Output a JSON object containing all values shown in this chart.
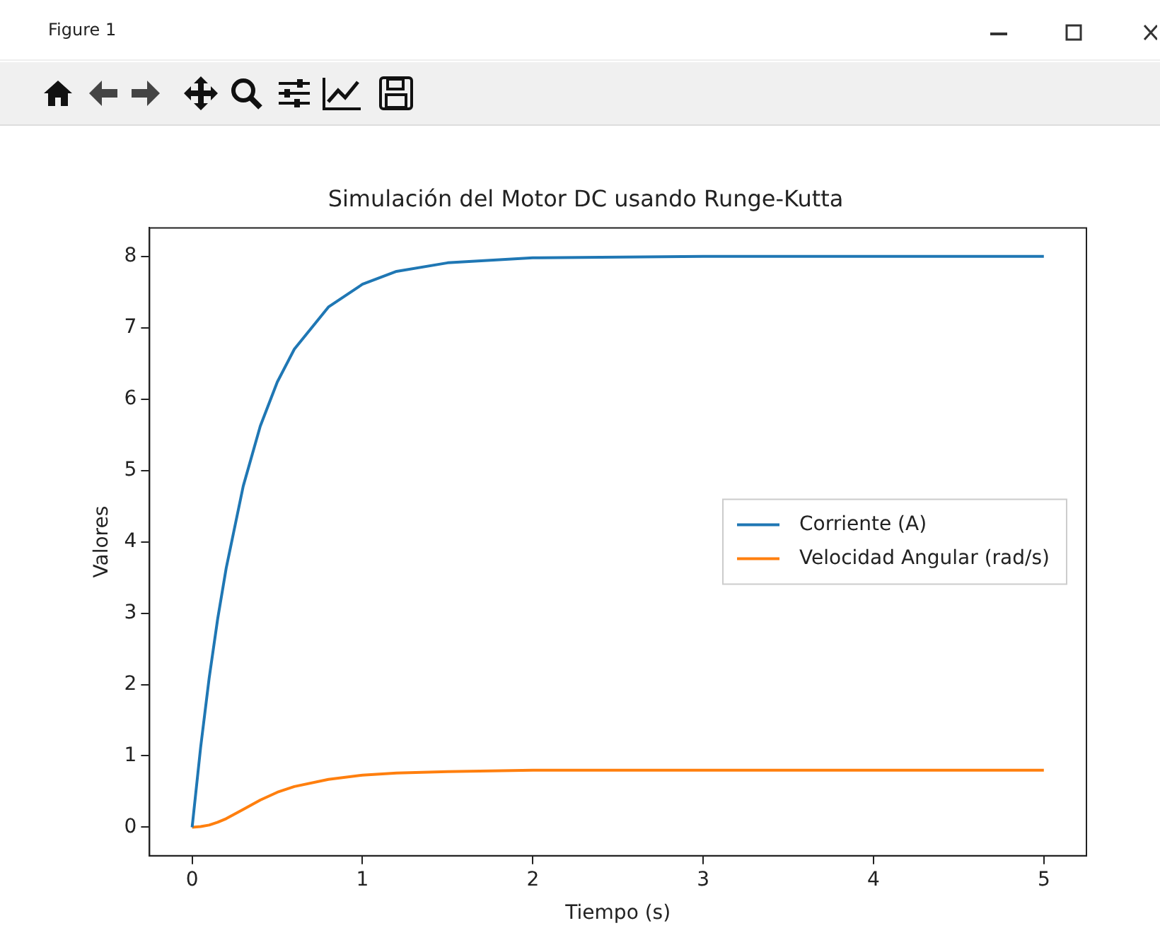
{
  "chart_data": {
    "type": "line",
    "title": "Simulación del Motor DC usando Runge-Kutta",
    "xlabel": "Tiempo (s)",
    "ylabel": "Valores",
    "annotations": [
      "Figure 1"
    ],
    "x": [
      0,
      0.05,
      0.1,
      0.15,
      0.2,
      0.3,
      0.4,
      0.5,
      0.6,
      0.8,
      1,
      1.2,
      1.5,
      2,
      3,
      4,
      5
    ],
    "series": [
      {
        "name": "Corriente (A)",
        "color": "#1f77b4",
        "values": [
          0,
          1.12,
          2.09,
          2.92,
          3.63,
          4.78,
          5.62,
          6.24,
          6.7,
          7.29,
          7.61,
          7.79,
          7.91,
          7.98,
          8,
          8,
          8
        ]
      },
      {
        "name": "Velocidad Angular (rad/s)",
        "color": "#ff7f0e",
        "values": [
          0,
          0.01,
          0.03,
          0.07,
          0.12,
          0.25,
          0.38,
          0.49,
          0.57,
          0.67,
          0.73,
          0.76,
          0.78,
          0.8,
          0.8,
          0.8,
          0.8
        ]
      }
    ],
    "xlim": [
      -0.25,
      5.25
    ],
    "xticks": [
      0,
      1,
      2,
      3,
      4,
      5
    ],
    "ylim": [
      -0.4,
      8.4
    ],
    "yticks": [
      0,
      1,
      2,
      3,
      4,
      5,
      6,
      7,
      8
    ],
    "legend": "right",
    "grid": false,
    "marker": "none",
    "line_style": "solid"
  }
}
